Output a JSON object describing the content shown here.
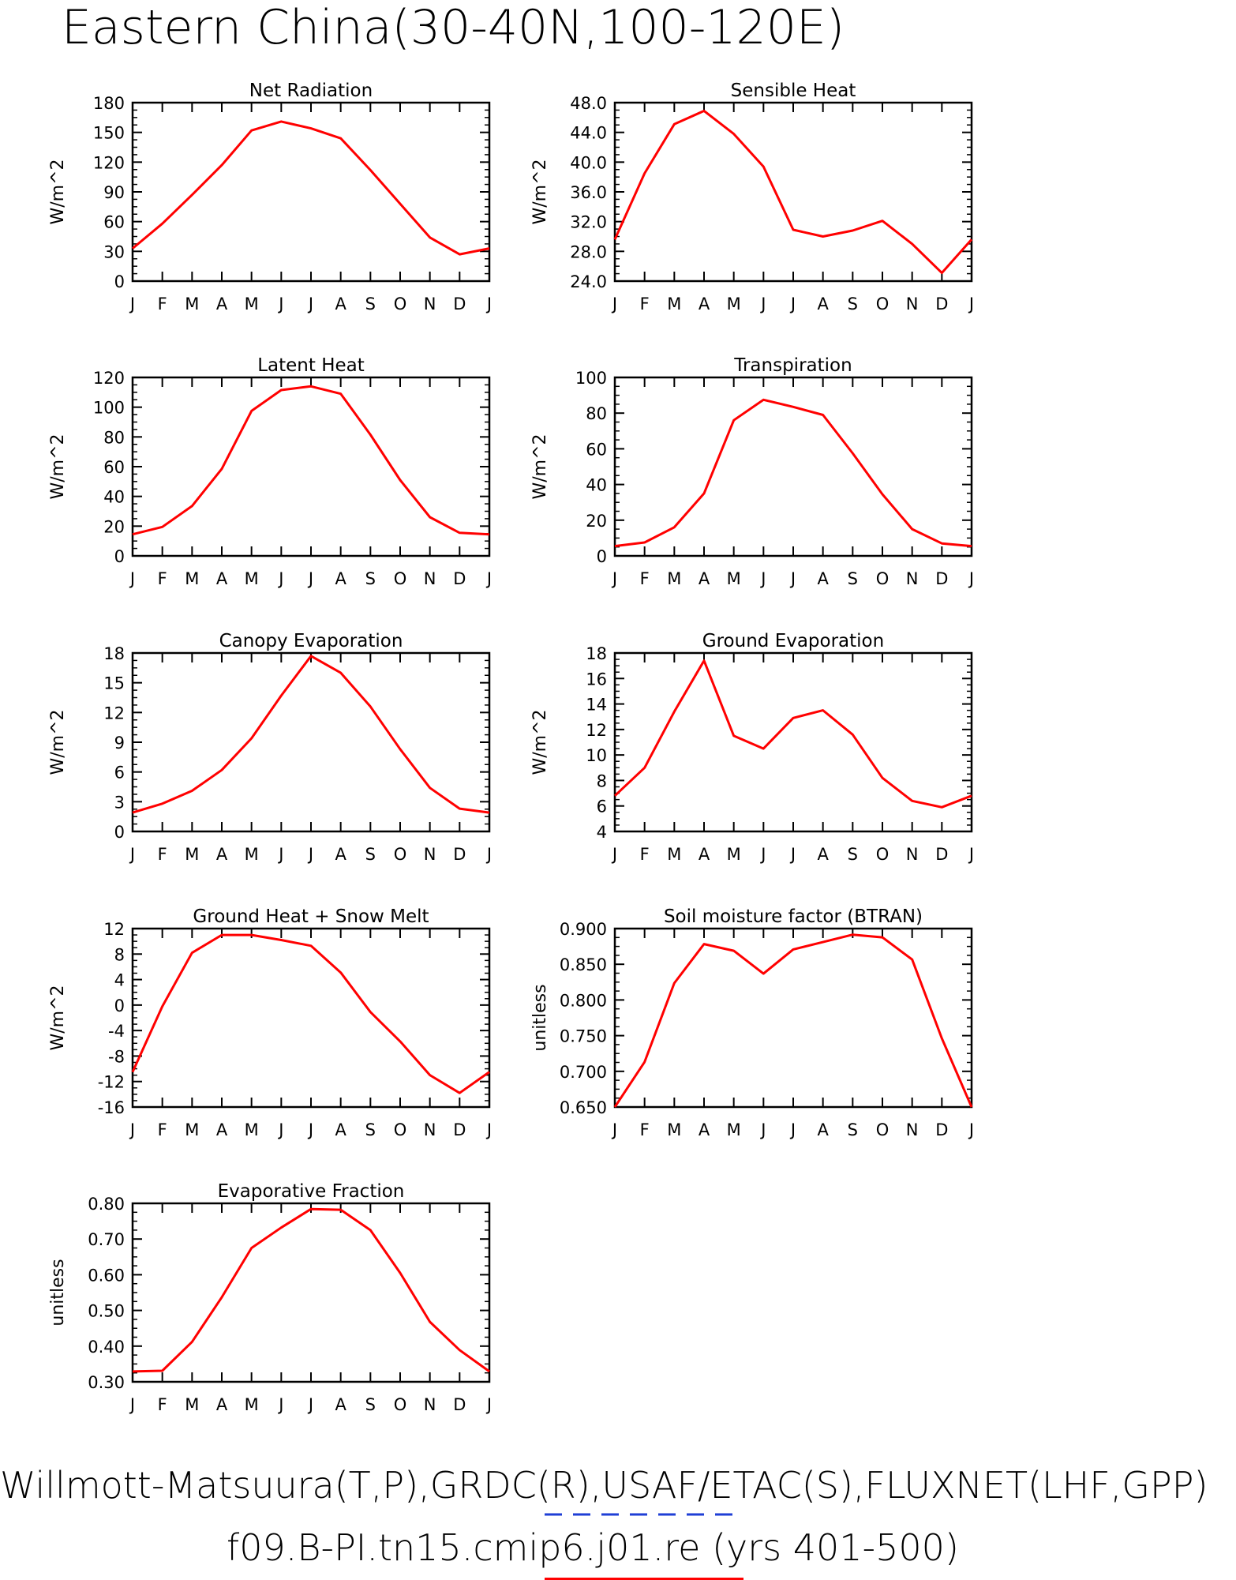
{
  "title": "Eastern China(30-40N,100-120E)",
  "footer": {
    "line1": "Willmott-Matsuura(T,P),GRDC(R),USAF/ETAC(S),FLUXNET(LHF,GPP)",
    "line2": "f09.B-PI.tn15.cmip6.j01.re (yrs 401-500)",
    "line1_legend_color": "#1f3fd6",
    "line2_legend_color": "#ff0000"
  },
  "chart_data": [
    {
      "type": "line",
      "title": "Net Radiation",
      "ylabel": "W/m^2",
      "categories": [
        "J",
        "F",
        "M",
        "A",
        "M",
        "J",
        "J",
        "A",
        "S",
        "O",
        "N",
        "D",
        "J"
      ],
      "ylim": [
        0,
        180
      ],
      "yticks": [
        "0",
        "30",
        "60",
        "90",
        "120",
        "150",
        "180"
      ],
      "series": [
        {
          "color": "#ff0000",
          "values": [
            33,
            58,
            87,
            117,
            152,
            161,
            154,
            144,
            112,
            78,
            44,
            27,
            33
          ]
        }
      ]
    },
    {
      "type": "line",
      "title": "Sensible Heat",
      "ylabel": "W/m^2",
      "categories": [
        "J",
        "F",
        "M",
        "A",
        "M",
        "J",
        "J",
        "A",
        "S",
        "O",
        "N",
        "D",
        "J"
      ],
      "ylim": [
        24,
        48
      ],
      "yticks": [
        "24.0",
        "28.0",
        "32.0",
        "36.0",
        "40.0",
        "44.0",
        "48.0"
      ],
      "series": [
        {
          "color": "#ff0000",
          "values": [
            29.6,
            38.5,
            45.1,
            46.9,
            43.8,
            39.4,
            30.9,
            30.0,
            30.8,
            32.1,
            29.0,
            25.1,
            29.6
          ]
        }
      ]
    },
    {
      "type": "line",
      "title": "Latent Heat",
      "ylabel": "W/m^2",
      "categories": [
        "J",
        "F",
        "M",
        "A",
        "M",
        "J",
        "J",
        "A",
        "S",
        "O",
        "N",
        "D",
        "J"
      ],
      "ylim": [
        0,
        120
      ],
      "yticks": [
        "0",
        "20",
        "40",
        "60",
        "80",
        "100",
        "120"
      ],
      "series": [
        {
          "color": "#ff0000",
          "values": [
            14.5,
            19.5,
            33.5,
            58.5,
            97.5,
            111.5,
            114,
            109,
            81.5,
            51,
            26,
            15.5,
            14.5
          ]
        }
      ]
    },
    {
      "type": "line",
      "title": "Transpiration",
      "ylabel": "W/m^2",
      "categories": [
        "J",
        "F",
        "M",
        "A",
        "M",
        "J",
        "J",
        "A",
        "S",
        "O",
        "N",
        "D",
        "J"
      ],
      "ylim": [
        0,
        100
      ],
      "yticks": [
        "0",
        "20",
        "40",
        "60",
        "80",
        "100"
      ],
      "series": [
        {
          "color": "#ff0000",
          "values": [
            5.5,
            7.5,
            16,
            35,
            76,
            87.5,
            83.5,
            79,
            57.5,
            34.5,
            15,
            7,
            5.5
          ]
        }
      ]
    },
    {
      "type": "line",
      "title": "Canopy Evaporation",
      "ylabel": "W/m^2",
      "categories": [
        "J",
        "F",
        "M",
        "A",
        "M",
        "J",
        "J",
        "A",
        "S",
        "O",
        "N",
        "D",
        "J"
      ],
      "ylim": [
        0,
        18
      ],
      "yticks": [
        "0",
        "3",
        "6",
        "9",
        "12",
        "15",
        "18"
      ],
      "series": [
        {
          "color": "#ff0000",
          "values": [
            1.9,
            2.8,
            4.1,
            6.2,
            9.4,
            13.7,
            17.7,
            16.0,
            12.6,
            8.3,
            4.4,
            2.3,
            1.9
          ]
        }
      ]
    },
    {
      "type": "line",
      "title": "Ground Evaporation",
      "ylabel": "W/m^2",
      "categories": [
        "J",
        "F",
        "M",
        "A",
        "M",
        "J",
        "J",
        "A",
        "S",
        "O",
        "N",
        "D",
        "J"
      ],
      "ylim": [
        4,
        18
      ],
      "yticks": [
        "4",
        "6",
        "8",
        "10",
        "12",
        "14",
        "16",
        "18"
      ],
      "series": [
        {
          "color": "#ff0000",
          "values": [
            6.8,
            9.0,
            13.4,
            17.4,
            11.5,
            10.5,
            12.9,
            13.5,
            11.6,
            8.2,
            6.4,
            5.9,
            6.8
          ]
        }
      ]
    },
    {
      "type": "line",
      "title": "Ground Heat + Snow Melt",
      "ylabel": "W/m^2",
      "categories": [
        "J",
        "F",
        "M",
        "A",
        "M",
        "J",
        "J",
        "A",
        "S",
        "O",
        "N",
        "D",
        "J"
      ],
      "ylim": [
        -16,
        12
      ],
      "yticks": [
        "-16",
        "-12",
        "-8",
        "-4",
        "0",
        "4",
        "8",
        "12"
      ],
      "series": [
        {
          "color": "#ff0000",
          "values": [
            -10.5,
            -0.2,
            8.2,
            11.0,
            11.0,
            10.2,
            9.3,
            5.1,
            -1.1,
            -5.7,
            -11.0,
            -13.8,
            -10.5
          ]
        }
      ]
    },
    {
      "type": "line",
      "title": "Soil moisture factor (BTRAN)",
      "ylabel": "unitless",
      "categories": [
        "J",
        "F",
        "M",
        "A",
        "M",
        "J",
        "J",
        "A",
        "S",
        "O",
        "N",
        "D",
        "J"
      ],
      "ylim": [
        0.645,
        0.91
      ],
      "yticks": [
        "0.650",
        "0.700",
        "0.750",
        "0.800",
        "0.850",
        "0.900"
      ],
      "series": [
        {
          "color": "#ff0000",
          "values": [
            0.645,
            0.712,
            0.829,
            0.887,
            0.877,
            0.843,
            0.879,
            0.89,
            0.901,
            0.897,
            0.864,
            0.747,
            0.645
          ]
        }
      ]
    },
    {
      "type": "line",
      "title": "Evaporative Fraction",
      "ylabel": "unitless",
      "categories": [
        "J",
        "F",
        "M",
        "A",
        "M",
        "J",
        "J",
        "A",
        "S",
        "O",
        "N",
        "D",
        "J"
      ],
      "ylim": [
        0.3,
        0.8
      ],
      "yticks": [
        "0.30",
        "0.40",
        "0.50",
        "0.60",
        "0.70",
        "0.80"
      ],
      "series": [
        {
          "color": "#ff0000",
          "values": [
            0.329,
            0.331,
            0.412,
            0.537,
            0.675,
            0.732,
            0.784,
            0.782,
            0.725,
            0.605,
            0.468,
            0.389,
            0.329
          ]
        }
      ]
    }
  ]
}
